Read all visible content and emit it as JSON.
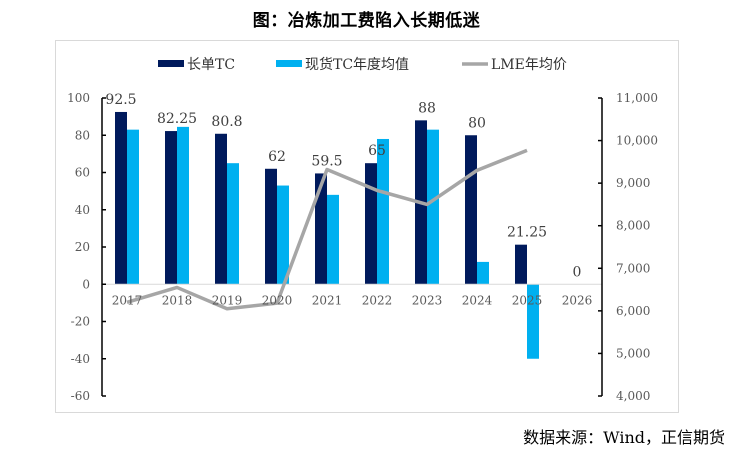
{
  "chart_data": {
    "type": "bar",
    "title": "图：冶炼加工费陷入长期低迷",
    "source": "数据来源：Wind，正信期货",
    "categories": [
      "2017",
      "2018",
      "2019",
      "2020",
      "2021",
      "2022",
      "2023",
      "2024",
      "2025",
      "2026"
    ],
    "series": [
      {
        "name": "长单TC",
        "type": "bar",
        "axis": "left",
        "color": "#001A5C",
        "values": [
          92.5,
          82.25,
          80.8,
          62,
          59.5,
          65,
          88,
          80,
          21.25,
          0
        ],
        "labels": [
          "92.5",
          "82.25",
          "80.8",
          "62",
          "59.5",
          "65",
          "88",
          "80",
          "21.25",
          "0"
        ]
      },
      {
        "name": "现货TC年度均值",
        "type": "bar",
        "axis": "left",
        "color": "#00B0F0",
        "values": [
          83,
          84.5,
          65,
          53,
          48,
          78,
          83,
          12,
          -40,
          null
        ]
      },
      {
        "name": "LME年均价",
        "type": "line",
        "axis": "right",
        "color": "#A6A6A6",
        "values": [
          6200,
          6550,
          6050,
          6180,
          9320,
          8830,
          8500,
          9300,
          9770,
          null
        ]
      }
    ],
    "left_axis": {
      "ylim": [
        -60,
        100
      ],
      "ticks": [
        -60,
        -40,
        -20,
        0,
        20,
        40,
        60,
        80,
        100
      ],
      "tick_labels": [
        "-60",
        "-40",
        "-20",
        "0",
        "20",
        "40",
        "60",
        "80",
        "100"
      ]
    },
    "right_axis": {
      "ylim": [
        4000,
        11000
      ],
      "ticks": [
        4000,
        5000,
        6000,
        7000,
        8000,
        9000,
        10000,
        11000
      ],
      "tick_labels": [
        "4,000",
        "5,000",
        "6,000",
        "7,000",
        "8,000",
        "9,000",
        "10,000",
        "11,000"
      ]
    },
    "xlabel": "",
    "ylabel": "",
    "legend": {
      "position": "top",
      "entries": [
        "长单TC",
        "现货TC年度均值",
        "LME年均价"
      ]
    },
    "grid": false
  }
}
